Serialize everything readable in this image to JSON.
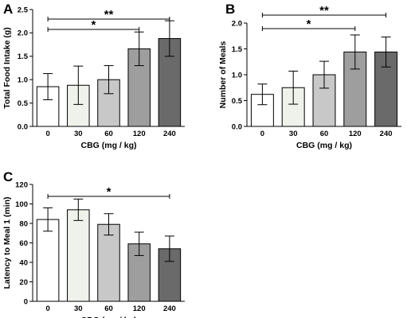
{
  "chart_data": [
    {
      "panel": "A",
      "type": "bar",
      "categories": [
        "0",
        "30",
        "60",
        "120",
        "240"
      ],
      "values": [
        0.85,
        0.88,
        1.0,
        1.66,
        1.88
      ],
      "errors": [
        0.28,
        0.41,
        0.3,
        0.36,
        0.38
      ],
      "bar_colors": [
        "#ffffff",
        "#eef2ea",
        "#c8c8c8",
        "#9e9e9e",
        "#6a6a6a"
      ],
      "xlabel": "CBG (mg / kg)",
      "ylabel": "Total Food Intake (g)",
      "ylim": [
        0,
        2.5
      ],
      "yticks": [
        "0.0",
        "0.5",
        "1.0",
        "1.5",
        "2.0",
        "2.5"
      ],
      "significance": [
        {
          "from": "0",
          "to": "120",
          "label": "*"
        },
        {
          "from": "0",
          "to": "240",
          "label": "**"
        }
      ]
    },
    {
      "panel": "B",
      "type": "bar",
      "categories": [
        "0",
        "30",
        "60",
        "120",
        "240"
      ],
      "values": [
        0.62,
        0.75,
        1.0,
        1.44,
        1.44
      ],
      "errors": [
        0.2,
        0.32,
        0.26,
        0.33,
        0.29
      ],
      "bar_colors": [
        "#ffffff",
        "#eef2ea",
        "#c8c8c8",
        "#9e9e9e",
        "#6a6a6a"
      ],
      "xlabel": "CBG (mg / kg)",
      "ylabel": "Number of Meals",
      "ylim": [
        0,
        2.0
      ],
      "yticks": [
        "0.0",
        "0.5",
        "1.0",
        "1.5",
        "2.0"
      ],
      "significance": [
        {
          "from": "0",
          "to": "120",
          "label": "*"
        },
        {
          "from": "0",
          "to": "240",
          "label": "**"
        }
      ]
    },
    {
      "panel": "C",
      "type": "bar",
      "categories": [
        "0",
        "30",
        "60",
        "120",
        "240"
      ],
      "values": [
        84,
        94,
        79,
        59,
        54
      ],
      "errors": [
        12,
        11,
        11,
        12,
        13
      ],
      "bar_colors": [
        "#ffffff",
        "#eef2ea",
        "#c8c8c8",
        "#9e9e9e",
        "#6a6a6a"
      ],
      "xlabel": "CBG (mg / kg)",
      "ylabel": "Latency to Meal 1 (min)",
      "ylim": [
        0,
        120
      ],
      "yticks": [
        "0",
        "20",
        "40",
        "60",
        "80",
        "100",
        "120"
      ],
      "significance": [
        {
          "from": "0",
          "to": "240",
          "label": "*"
        }
      ]
    }
  ]
}
